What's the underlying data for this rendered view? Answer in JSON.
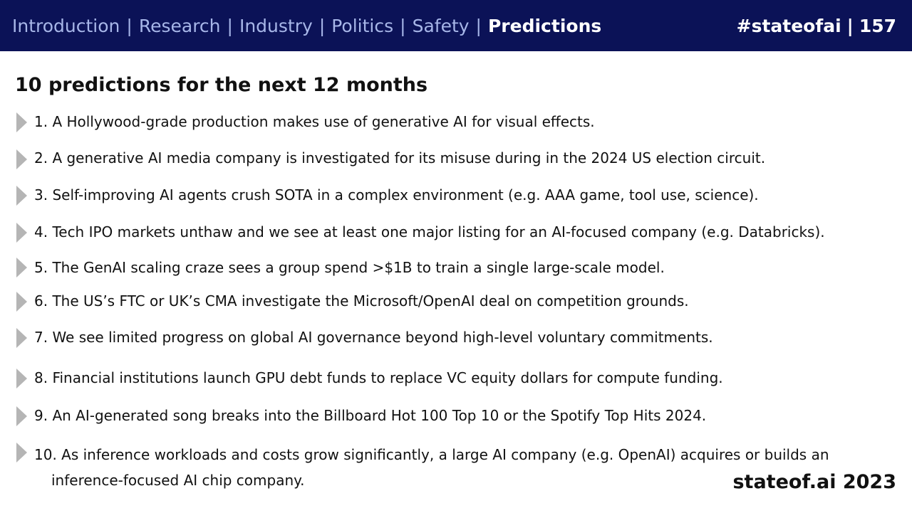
{
  "header": {
    "nav": [
      {
        "label": "Introduction",
        "active": false
      },
      {
        "label": "Research",
        "active": false
      },
      {
        "label": "Industry",
        "active": false
      },
      {
        "label": "Politics",
        "active": false
      },
      {
        "label": "Safety",
        "active": false
      },
      {
        "label": "Predictions",
        "active": true
      }
    ],
    "separator": "|",
    "hashtag": "#stateofai",
    "page_number": "157"
  },
  "title": "10 predictions for the next 12 months",
  "predictions": [
    "1. A Hollywood-grade production makes use of generative AI for visual effects.",
    "2. A generative AI media company is investigated for its misuse during in the 2024 US election circuit.",
    "3. Self-improving AI agents crush SOTA in a complex environment (e.g. AAA game, tool use, science).",
    "4. Tech IPO markets unthaw and we see at least one major listing for an AI-focused company (e.g. Databricks).",
    "5. The GenAI scaling craze sees a group spend >$1B to train a single large-scale model.",
    "6. The US’s FTC or UK’s CMA investigate the Microsoft/OpenAI deal on competition grounds.",
    "7. We see limited progress on global AI governance beyond high-level voluntary commitments.",
    "8. Financial institutions launch GPU debt funds to replace VC equity dollars for compute funding.",
    "9. An AI-generated song breaks into the Billboard Hot 100 Top 10 or the Spotify Top Hits 2024.",
    "10. As inference workloads and costs grow significantly, a large AI company (e.g. OpenAI) acquires or builds an"
  ],
  "prediction_10_continuation": "inference-focused AI chip company.",
  "footer": "stateof.ai 2023",
  "colors": {
    "header_bg": "#0b1257",
    "nav_inactive": "#a7b6e8",
    "nav_active": "#ffffff",
    "bullet_arrow": "#b5b5b5"
  }
}
